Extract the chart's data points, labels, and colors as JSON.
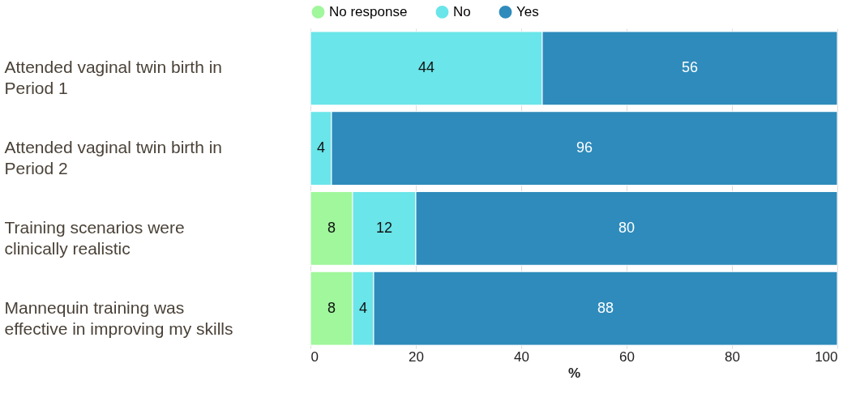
{
  "chart_data": {
    "type": "bar",
    "orientation": "horizontal",
    "stacked": true,
    "categories": [
      "Attended vaginal twin birth in Period 1",
      "Attended vaginal twin birth in Period 2",
      "Training scenarios were clinically realistic",
      "Mannequin training was effective in improving my skills"
    ],
    "series": [
      {
        "name": "No response",
        "color": "#a0f79c",
        "values": [
          null,
          null,
          8,
          8
        ]
      },
      {
        "name": "No",
        "color": "#6ae5e9",
        "values": [
          44,
          4,
          12,
          4
        ]
      },
      {
        "name": "Yes",
        "color": "#2e8bbc",
        "values": [
          56,
          96,
          80,
          88
        ]
      }
    ],
    "xlabel": "%",
    "xlim": [
      0,
      100
    ],
    "xticks": [
      0,
      20,
      40,
      60,
      80,
      100
    ],
    "grid": "x",
    "legend": "top",
    "data_labels": true
  }
}
